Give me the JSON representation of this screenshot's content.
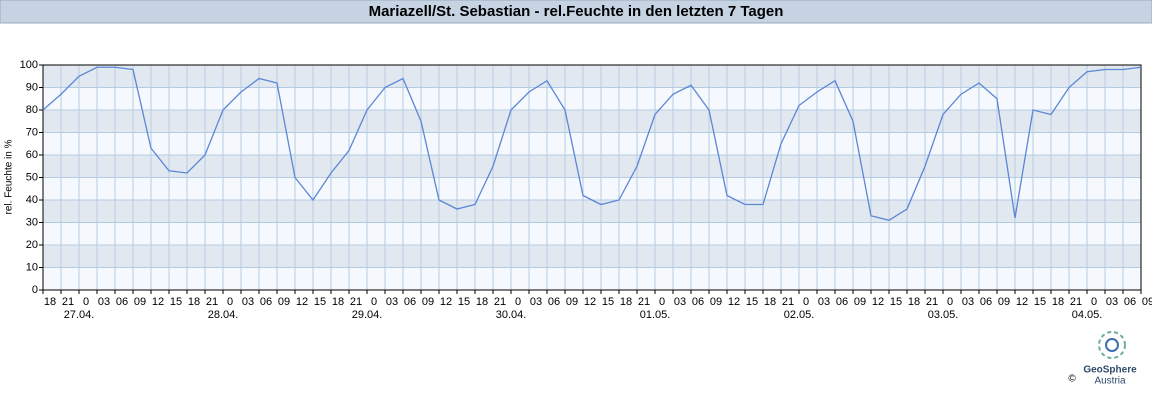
{
  "chart_data": {
    "type": "line",
    "title": "Mariazell/St. Sebastian - rel.Feuchte in den letzten 7 Tagen",
    "ylabel": "rel. Feuchte in %",
    "x": [
      0,
      3,
      6,
      9,
      12,
      15,
      18,
      21,
      24,
      27,
      30,
      33,
      36,
      39,
      42,
      45,
      48,
      51,
      54,
      57,
      60,
      63,
      66,
      69,
      72,
      75,
      78,
      81,
      84,
      87,
      90,
      93,
      96,
      99,
      102,
      105,
      108,
      111,
      114,
      117,
      120,
      123,
      126,
      129,
      132,
      135,
      138,
      141,
      144,
      147,
      150,
      153,
      156,
      159,
      162,
      165,
      168,
      171,
      174,
      177,
      180,
      183
    ],
    "series": [
      {
        "name": "rel. Feuchte",
        "color": "#5b87d6",
        "values": [
          80,
          87,
          95,
          99,
          99,
          98,
          63,
          53,
          52,
          60,
          80,
          88,
          94,
          92,
          50,
          40,
          52,
          62,
          80,
          90,
          94,
          75,
          40,
          36,
          38,
          55,
          80,
          88,
          93,
          80,
          42,
          38,
          40,
          55,
          78,
          87,
          91,
          80,
          42,
          38,
          38,
          65,
          82,
          88,
          93,
          75,
          33,
          31,
          36,
          55,
          78,
          87,
          92,
          85,
          32,
          80,
          78,
          90,
          97,
          98,
          98,
          99
        ]
      }
    ],
    "xlim": [
      0,
      183
    ],
    "ylim": [
      0,
      100
    ],
    "yticks": [
      0,
      10,
      20,
      30,
      40,
      50,
      60,
      70,
      80,
      90,
      100
    ],
    "xticks": [
      {
        "value": 0,
        "label": "18"
      },
      {
        "value": 3,
        "label": "21"
      },
      {
        "value": 6,
        "label": "0"
      },
      {
        "value": 9,
        "label": "03"
      },
      {
        "value": 12,
        "label": "06"
      },
      {
        "value": 15,
        "label": "09"
      },
      {
        "value": 18,
        "label": "12"
      },
      {
        "value": 21,
        "label": "15"
      },
      {
        "value": 24,
        "label": "18"
      },
      {
        "value": 27,
        "label": "21"
      },
      {
        "value": 30,
        "label": "0"
      },
      {
        "value": 33,
        "label": "03"
      },
      {
        "value": 36,
        "label": "06"
      },
      {
        "value": 39,
        "label": "09"
      },
      {
        "value": 42,
        "label": "12"
      },
      {
        "value": 45,
        "label": "15"
      },
      {
        "value": 48,
        "label": "18"
      },
      {
        "value": 51,
        "label": "21"
      },
      {
        "value": 54,
        "label": "0"
      },
      {
        "value": 57,
        "label": "03"
      },
      {
        "value": 60,
        "label": "06"
      },
      {
        "value": 63,
        "label": "09"
      },
      {
        "value": 66,
        "label": "12"
      },
      {
        "value": 69,
        "label": "15"
      },
      {
        "value": 72,
        "label": "18"
      },
      {
        "value": 75,
        "label": "21"
      },
      {
        "value": 78,
        "label": "0"
      },
      {
        "value": 81,
        "label": "03"
      },
      {
        "value": 84,
        "label": "06"
      },
      {
        "value": 87,
        "label": "09"
      },
      {
        "value": 90,
        "label": "12"
      },
      {
        "value": 93,
        "label": "15"
      },
      {
        "value": 96,
        "label": "18"
      },
      {
        "value": 99,
        "label": "21"
      },
      {
        "value": 102,
        "label": "0"
      },
      {
        "value": 105,
        "label": "03"
      },
      {
        "value": 108,
        "label": "06"
      },
      {
        "value": 111,
        "label": "09"
      },
      {
        "value": 114,
        "label": "12"
      },
      {
        "value": 117,
        "label": "15"
      },
      {
        "value": 120,
        "label": "18"
      },
      {
        "value": 123,
        "label": "21"
      },
      {
        "value": 126,
        "label": "0"
      },
      {
        "value": 129,
        "label": "03"
      },
      {
        "value": 132,
        "label": "06"
      },
      {
        "value": 135,
        "label": "09"
      },
      {
        "value": 138,
        "label": "12"
      },
      {
        "value": 141,
        "label": "15"
      },
      {
        "value": 144,
        "label": "18"
      },
      {
        "value": 147,
        "label": "21"
      },
      {
        "value": 150,
        "label": "0"
      },
      {
        "value": 153,
        "label": "03"
      },
      {
        "value": 156,
        "label": "06"
      },
      {
        "value": 159,
        "label": "09"
      },
      {
        "value": 162,
        "label": "12"
      },
      {
        "value": 165,
        "label": "15"
      },
      {
        "value": 168,
        "label": "18"
      },
      {
        "value": 171,
        "label": "21"
      },
      {
        "value": 174,
        "label": "0"
      },
      {
        "value": 177,
        "label": "03"
      },
      {
        "value": 180,
        "label": "06"
      },
      {
        "value": 183,
        "label": "09"
      }
    ],
    "xdate_ticks": [
      {
        "value": 6,
        "label": "27.04."
      },
      {
        "value": 30,
        "label": "28.04."
      },
      {
        "value": 54,
        "label": "29.04."
      },
      {
        "value": 78,
        "label": "30.04."
      },
      {
        "value": 102,
        "label": "01.05."
      },
      {
        "value": 126,
        "label": "02.05."
      },
      {
        "value": 150,
        "label": "03.05."
      },
      {
        "value": 174,
        "label": "04.05."
      }
    ],
    "grid": true
  },
  "footer": {
    "copyright": "©",
    "brand": "GeoSphere",
    "sub": "Austria"
  }
}
